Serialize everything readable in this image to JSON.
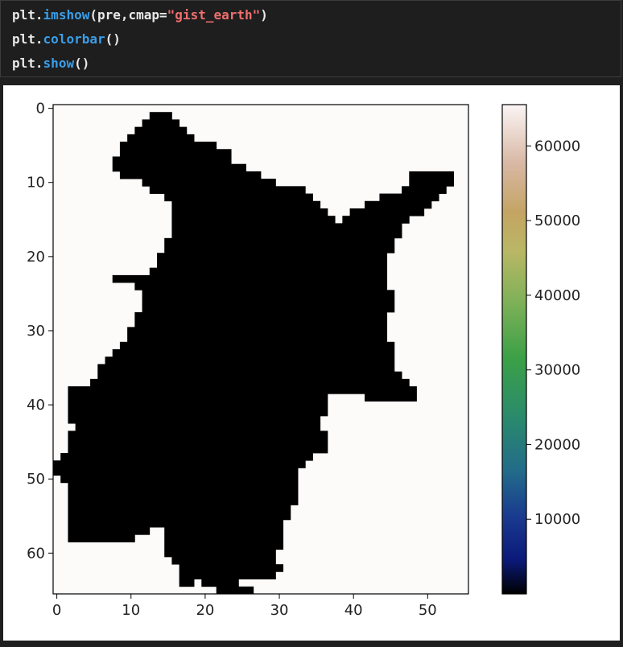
{
  "code": {
    "lines": [
      [
        {
          "t": "plt",
          "c": "module"
        },
        {
          "t": ".",
          "c": "op"
        },
        {
          "t": "imshow",
          "c": "fn"
        },
        {
          "t": "(pre,cmap=",
          "c": "op"
        },
        {
          "t": "\"gist_earth\"",
          "c": "str"
        },
        {
          "t": ")",
          "c": "op"
        }
      ],
      [
        {
          "t": "plt",
          "c": "module"
        },
        {
          "t": ".",
          "c": "op"
        },
        {
          "t": "colorbar",
          "c": "fn"
        },
        {
          "t": "()",
          "c": "op"
        }
      ],
      [
        {
          "t": "plt",
          "c": "module"
        },
        {
          "t": ".",
          "c": "op"
        },
        {
          "t": "show",
          "c": "fn"
        },
        {
          "t": "()",
          "c": "op"
        }
      ]
    ]
  },
  "chart_data": {
    "type": "heatmap",
    "cmap": "gist_earth",
    "background_value": 65535,
    "mask_value": 0,
    "xlim": [
      -0.5,
      55.5
    ],
    "ylim": [
      65.5,
      -0.5
    ],
    "xticks": [
      0,
      10,
      20,
      30,
      40,
      50
    ],
    "yticks": [
      0,
      10,
      20,
      30,
      40,
      50,
      60
    ],
    "colorbar": {
      "range": [
        0,
        65535
      ],
      "ticks": [
        10000,
        20000,
        30000,
        40000,
        50000,
        60000
      ],
      "tick_labels": [
        "10000",
        "20000",
        "30000",
        "40000",
        "50000",
        "60000"
      ]
    },
    "mask_rows": [
      {
        "y": 1,
        "spans": [
          [
            13,
            15
          ]
        ]
      },
      {
        "y": 2,
        "spans": [
          [
            12,
            16
          ]
        ]
      },
      {
        "y": 3,
        "spans": [
          [
            11,
            17
          ]
        ]
      },
      {
        "y": 4,
        "spans": [
          [
            10,
            18
          ]
        ]
      },
      {
        "y": 5,
        "spans": [
          [
            9,
            21
          ]
        ]
      },
      {
        "y": 6,
        "spans": [
          [
            9,
            23
          ]
        ]
      },
      {
        "y": 7,
        "spans": [
          [
            8,
            23
          ]
        ]
      },
      {
        "y": 8,
        "spans": [
          [
            8,
            25
          ]
        ]
      },
      {
        "y": 9,
        "spans": [
          [
            9,
            27
          ],
          [
            48,
            53
          ]
        ]
      },
      {
        "y": 10,
        "spans": [
          [
            12,
            29
          ],
          [
            48,
            53
          ]
        ]
      },
      {
        "y": 11,
        "spans": [
          [
            13,
            33
          ],
          [
            47,
            52
          ]
        ]
      },
      {
        "y": 12,
        "spans": [
          [
            15,
            34
          ],
          [
            44,
            51
          ]
        ]
      },
      {
        "y": 13,
        "spans": [
          [
            16,
            35
          ],
          [
            42,
            50
          ]
        ]
      },
      {
        "y": 14,
        "spans": [
          [
            16,
            36
          ],
          [
            40,
            49
          ]
        ]
      },
      {
        "y": 15,
        "spans": [
          [
            16,
            37
          ],
          [
            39,
            47
          ]
        ]
      },
      {
        "y": 16,
        "spans": [
          [
            16,
            46
          ]
        ]
      },
      {
        "y": 17,
        "spans": [
          [
            16,
            46
          ]
        ]
      },
      {
        "y": 18,
        "spans": [
          [
            15,
            45
          ]
        ]
      },
      {
        "y": 19,
        "spans": [
          [
            15,
            45
          ]
        ]
      },
      {
        "y": 20,
        "spans": [
          [
            14,
            44
          ]
        ]
      },
      {
        "y": 21,
        "spans": [
          [
            14,
            44
          ]
        ]
      },
      {
        "y": 22,
        "spans": [
          [
            13,
            44
          ]
        ]
      },
      {
        "y": 23,
        "spans": [
          [
            8,
            44
          ]
        ]
      },
      {
        "y": 24,
        "spans": [
          [
            11,
            44
          ]
        ]
      },
      {
        "y": 25,
        "spans": [
          [
            12,
            45
          ]
        ]
      },
      {
        "y": 26,
        "spans": [
          [
            12,
            45
          ]
        ]
      },
      {
        "y": 27,
        "spans": [
          [
            12,
            45
          ]
        ]
      },
      {
        "y": 28,
        "spans": [
          [
            11,
            44
          ]
        ]
      },
      {
        "y": 29,
        "spans": [
          [
            11,
            44
          ]
        ]
      },
      {
        "y": 30,
        "spans": [
          [
            10,
            44
          ]
        ]
      },
      {
        "y": 31,
        "spans": [
          [
            10,
            44
          ]
        ]
      },
      {
        "y": 32,
        "spans": [
          [
            9,
            45
          ]
        ]
      },
      {
        "y": 33,
        "spans": [
          [
            8,
            45
          ]
        ]
      },
      {
        "y": 34,
        "spans": [
          [
            7,
            45
          ]
        ]
      },
      {
        "y": 35,
        "spans": [
          [
            6,
            45
          ]
        ]
      },
      {
        "y": 36,
        "spans": [
          [
            6,
            46
          ]
        ]
      },
      {
        "y": 37,
        "spans": [
          [
            5,
            47
          ]
        ]
      },
      {
        "y": 38,
        "spans": [
          [
            2,
            48
          ]
        ]
      },
      {
        "y": 39,
        "spans": [
          [
            2,
            36
          ],
          [
            42,
            48
          ]
        ]
      },
      {
        "y": 40,
        "spans": [
          [
            2,
            36
          ]
        ]
      },
      {
        "y": 41,
        "spans": [
          [
            2,
            36
          ]
        ]
      },
      {
        "y": 42,
        "spans": [
          [
            2,
            35
          ]
        ]
      },
      {
        "y": 43,
        "spans": [
          [
            3,
            35
          ]
        ]
      },
      {
        "y": 44,
        "spans": [
          [
            2,
            36
          ]
        ]
      },
      {
        "y": 45,
        "spans": [
          [
            2,
            36
          ]
        ]
      },
      {
        "y": 46,
        "spans": [
          [
            2,
            36
          ]
        ]
      },
      {
        "y": 47,
        "spans": [
          [
            1,
            34
          ]
        ]
      },
      {
        "y": 48,
        "spans": [
          [
            0,
            33
          ]
        ]
      },
      {
        "y": 49,
        "spans": [
          [
            0,
            32
          ]
        ]
      },
      {
        "y": 50,
        "spans": [
          [
            1,
            32
          ]
        ]
      },
      {
        "y": 51,
        "spans": [
          [
            2,
            32
          ]
        ]
      },
      {
        "y": 52,
        "spans": [
          [
            2,
            32
          ]
        ]
      },
      {
        "y": 53,
        "spans": [
          [
            2,
            32
          ]
        ]
      },
      {
        "y": 54,
        "spans": [
          [
            2,
            31
          ]
        ]
      },
      {
        "y": 55,
        "spans": [
          [
            2,
            31
          ]
        ]
      },
      {
        "y": 56,
        "spans": [
          [
            2,
            30
          ]
        ]
      },
      {
        "y": 57,
        "spans": [
          [
            2,
            12
          ],
          [
            15,
            30
          ]
        ]
      },
      {
        "y": 58,
        "spans": [
          [
            2,
            10
          ],
          [
            15,
            30
          ]
        ]
      },
      {
        "y": 59,
        "spans": [
          [
            15,
            30
          ]
        ]
      },
      {
        "y": 60,
        "spans": [
          [
            15,
            29
          ]
        ]
      },
      {
        "y": 61,
        "spans": [
          [
            16,
            29
          ]
        ]
      },
      {
        "y": 62,
        "spans": [
          [
            17,
            30
          ]
        ]
      },
      {
        "y": 63,
        "spans": [
          [
            17,
            29
          ]
        ]
      },
      {
        "y": 64,
        "spans": [
          [
            17,
            18
          ],
          [
            20,
            24
          ]
        ]
      },
      {
        "y": 65,
        "spans": [
          [
            22,
            26
          ]
        ]
      }
    ]
  }
}
